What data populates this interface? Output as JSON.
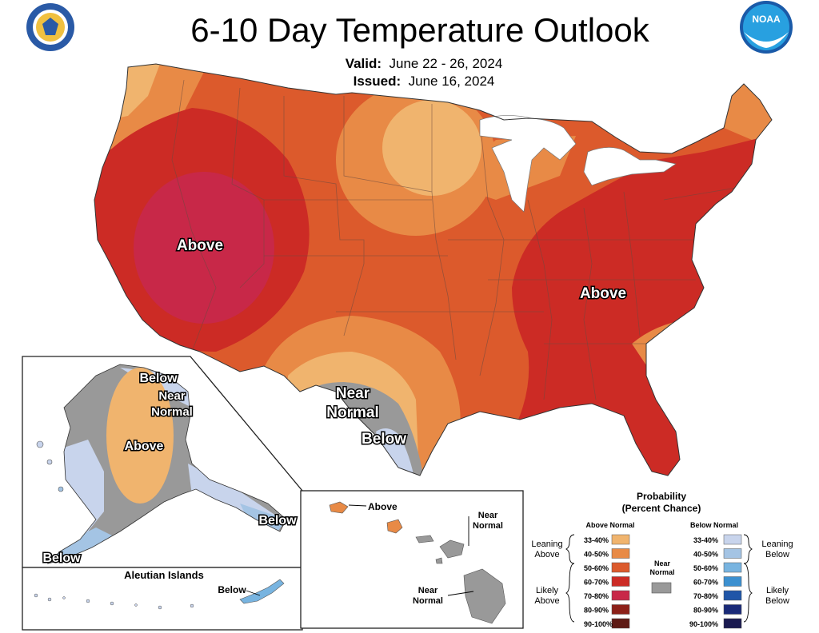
{
  "header": {
    "title": "6-10 Day Temperature Outlook",
    "valid_label": "Valid:",
    "valid_value": "June 22 - 26, 2024",
    "issued_label": "Issued:",
    "issued_value": "June 16, 2024"
  },
  "logos": {
    "noaa_text": "NOAA"
  },
  "map_labels": {
    "conus_west": "Above",
    "conus_east": "Above",
    "texas_near_1": "Near",
    "texas_near_2": "Normal",
    "texas_below": "Below",
    "alaska_below_north": "Below",
    "alaska_near_1": "Near",
    "alaska_near_2": "Normal",
    "alaska_above": "Above",
    "alaska_below_southeast": "Below",
    "alaska_below_southwest": "Below",
    "aleutian_title": "Aleutian Islands",
    "aleutian_below": "Below",
    "hawaii_above": "Above",
    "hawaii_near_north_1": "Near",
    "hawaii_near_north_2": "Normal",
    "hawaii_near_south_1": "Near",
    "hawaii_near_south_2": "Normal"
  },
  "legend": {
    "title_1": "Probability",
    "title_2": "(Percent Chance)",
    "above_header": "Above Normal",
    "below_header": "Below Normal",
    "leaning_above_1": "Leaning",
    "leaning_above_2": "Above",
    "likely_above_1": "Likely",
    "likely_above_2": "Above",
    "leaning_below_1": "Leaning",
    "leaning_below_2": "Below",
    "likely_below_1": "Likely",
    "likely_below_2": "Below",
    "near_normal_1": "Near",
    "near_normal_2": "Normal",
    "near_normal_color": "#999999",
    "above": [
      {
        "label": "33-40%",
        "color": "#f0b46e"
      },
      {
        "label": "40-50%",
        "color": "#e88a46"
      },
      {
        "label": "50-60%",
        "color": "#dc5a2c"
      },
      {
        "label": "60-70%",
        "color": "#cc2b25"
      },
      {
        "label": "70-80%",
        "color": "#c82848"
      },
      {
        "label": "80-90%",
        "color": "#8c2018"
      },
      {
        "label": "90-100%",
        "color": "#5e1a14"
      }
    ],
    "below": [
      {
        "label": "33-40%",
        "color": "#c8d4ec"
      },
      {
        "label": "40-50%",
        "color": "#a4c4e4"
      },
      {
        "label": "50-60%",
        "color": "#78b4e0"
      },
      {
        "label": "60-70%",
        "color": "#3c90d0"
      },
      {
        "label": "70-80%",
        "color": "#2056a8"
      },
      {
        "label": "80-90%",
        "color": "#1a2a78"
      },
      {
        "label": "90-100%",
        "color": "#1a1a50"
      }
    ]
  }
}
